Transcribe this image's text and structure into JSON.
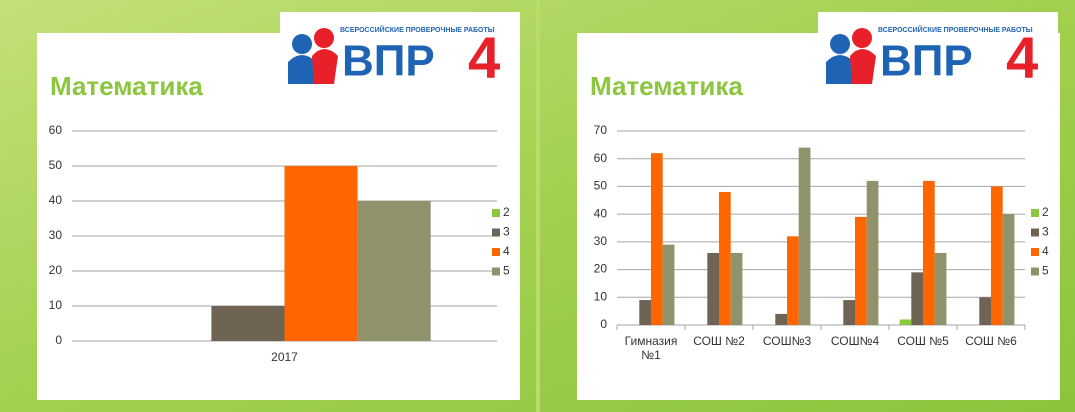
{
  "logo": {
    "caption": "ВСЕРОССИЙСКИЕ ПРОВЕРОЧНЫЕ РАБОТЫ",
    "letters": "ВПР",
    "digit": "4"
  },
  "chart_data": [
    {
      "type": "bar",
      "title": "Математика",
      "categories": [
        "2017"
      ],
      "series": [
        {
          "name": "2",
          "color": "#8dc63f",
          "values": [
            0
          ]
        },
        {
          "name": "3",
          "color": "#6f6453",
          "values": [
            10
          ]
        },
        {
          "name": "4",
          "color": "#ff6600",
          "values": [
            50
          ]
        },
        {
          "name": "5",
          "color": "#8f926a",
          "values": [
            40
          ]
        }
      ],
      "ylim": [
        0,
        60
      ],
      "yticks": [
        0,
        10,
        20,
        30,
        40,
        50,
        60
      ],
      "grid": true,
      "legend": "right"
    },
    {
      "type": "bar",
      "title": "Математика",
      "categories": [
        "Гимназия №1",
        "СОШ №2",
        "СОШ№3",
        "СОШ№4",
        "СОШ №5",
        "СОШ №6"
      ],
      "series": [
        {
          "name": "2",
          "color": "#8dc63f",
          "values": [
            0,
            0,
            0,
            0,
            2,
            0
          ]
        },
        {
          "name": "3",
          "color": "#6f6453",
          "values": [
            9,
            26,
            4,
            9,
            19,
            10
          ]
        },
        {
          "name": "4",
          "color": "#ff6600",
          "values": [
            62,
            48,
            32,
            39,
            52,
            50
          ]
        },
        {
          "name": "5",
          "color": "#8f926a",
          "values": [
            29,
            26,
            64,
            52,
            26,
            40
          ]
        }
      ],
      "ylim": [
        0,
        70
      ],
      "yticks": [
        0,
        10,
        20,
        30,
        40,
        50,
        60,
        70
      ],
      "grid": true,
      "legend": "right"
    }
  ]
}
